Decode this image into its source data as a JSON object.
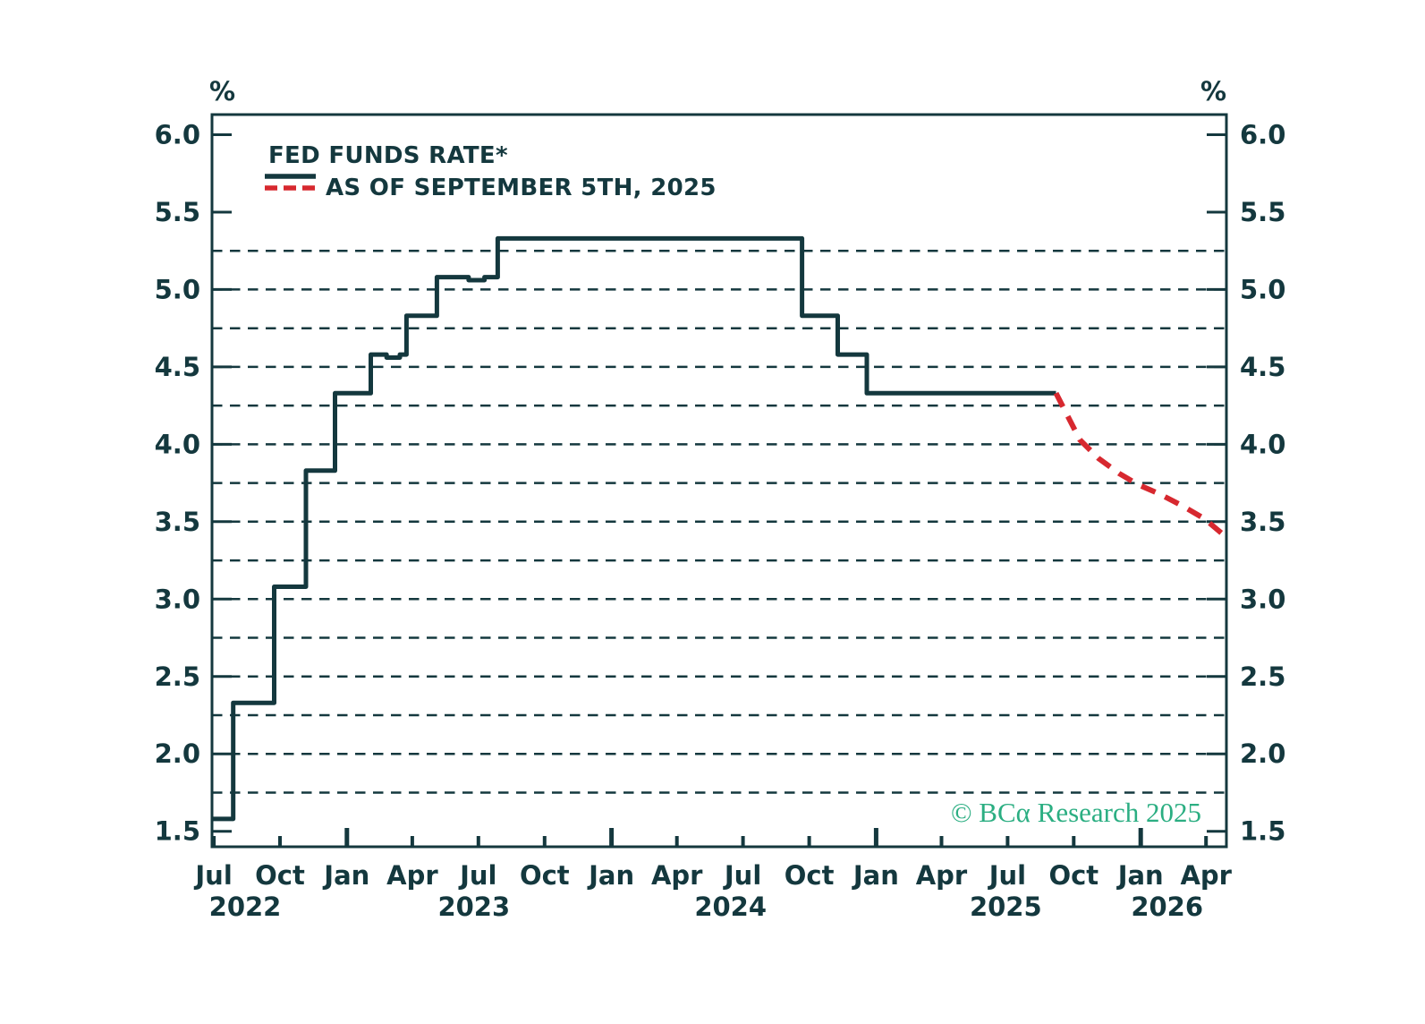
{
  "page": {
    "background": "#FFFFFF"
  },
  "axes": {
    "unit_left": "%",
    "unit_right": "%"
  },
  "legend": {
    "actual_label": "FED FUNDS RATE*",
    "projection_label": "AS OF SEPTEMBER 5TH, 2025"
  },
  "copyright": "© BCα Research 2025",
  "colors": {
    "ink": "#14383E",
    "projection_red": "#D7282F",
    "copyright_green": "#2BAE82",
    "background": "#FFFFFF"
  },
  "chart_data": {
    "type": "line",
    "title": "FED FUNDS RATE*",
    "subtitle": "AS OF SEPTEMBER 5TH, 2025",
    "xlabel": "",
    "ylabel": "%",
    "grid": true,
    "legend_position": "top-left-inside",
    "x_domain": [
      2022.49,
      2026.324
    ],
    "y_domain": [
      1.4,
      6.13
    ],
    "y_ticks": [
      {
        "v": 6.0,
        "label": "6.0"
      },
      {
        "v": 5.5,
        "label": "5.5"
      },
      {
        "v": 5.0,
        "label": "5.0"
      },
      {
        "v": 4.5,
        "label": "4.5"
      },
      {
        "v": 4.0,
        "label": "4.0"
      },
      {
        "v": 3.5,
        "label": "3.5"
      },
      {
        "v": 3.0,
        "label": "3.0"
      },
      {
        "v": 2.5,
        "label": "2.5"
      },
      {
        "v": 2.0,
        "label": "2.0"
      },
      {
        "v": 1.5,
        "label": "1.5"
      }
    ],
    "gridlines": [
      5.25,
      5.0,
      4.75,
      4.5,
      4.25,
      4.0,
      3.75,
      3.5,
      3.25,
      3.0,
      2.75,
      2.5,
      2.25,
      2.0,
      1.75
    ],
    "x_ticks": [
      {
        "t": 2022.497,
        "label": "Jul",
        "major": false
      },
      {
        "t": 2022.747,
        "label": "Oct",
        "major": false
      },
      {
        "t": 2023.0,
        "label": "Jan",
        "major": true
      },
      {
        "t": 2023.247,
        "label": "Apr",
        "major": false
      },
      {
        "t": 2023.497,
        "label": "Jul",
        "major": false
      },
      {
        "t": 2023.747,
        "label": "Oct",
        "major": false
      },
      {
        "t": 2024.0,
        "label": "Jan",
        "major": true
      },
      {
        "t": 2024.247,
        "label": "Apr",
        "major": false
      },
      {
        "t": 2024.497,
        "label": "Jul",
        "major": false
      },
      {
        "t": 2024.747,
        "label": "Oct",
        "major": false
      },
      {
        "t": 2025.0,
        "label": "Jan",
        "major": true
      },
      {
        "t": 2025.247,
        "label": "Apr",
        "major": false
      },
      {
        "t": 2025.497,
        "label": "Jul",
        "major": false
      },
      {
        "t": 2025.747,
        "label": "Oct",
        "major": false
      },
      {
        "t": 2026.0,
        "label": "Jan",
        "major": true
      },
      {
        "t": 2026.247,
        "label": "Apr",
        "major": false
      }
    ],
    "year_labels": [
      {
        "t": 2022.615,
        "label": "2022"
      },
      {
        "t": 2023.48,
        "label": "2023"
      },
      {
        "t": 2024.45,
        "label": "2024"
      },
      {
        "t": 2025.49,
        "label": "2025"
      },
      {
        "t": 2026.1,
        "label": "2026"
      }
    ],
    "series": [
      {
        "name": "FED FUNDS RATE*",
        "style": "solid",
        "step": true,
        "points": [
          [
            2022.49,
            1.58
          ],
          [
            2022.57,
            2.33
          ],
          [
            2022.725,
            3.08
          ],
          [
            2022.845,
            3.83
          ],
          [
            2022.955,
            4.33
          ],
          [
            2023.09,
            4.58
          ],
          [
            2023.15,
            4.56
          ],
          [
            2023.2,
            4.58
          ],
          [
            2023.225,
            4.83
          ],
          [
            2023.34,
            5.08
          ],
          [
            2023.46,
            5.06
          ],
          [
            2023.52,
            5.08
          ],
          [
            2023.57,
            5.33
          ],
          [
            2024.72,
            4.83
          ],
          [
            2024.855,
            4.58
          ],
          [
            2024.965,
            4.33
          ],
          [
            2025.68,
            4.33
          ]
        ]
      },
      {
        "name": "AS OF SEPTEMBER 5TH, 2025",
        "style": "dashed",
        "step": false,
        "points": [
          [
            2025.68,
            4.33
          ],
          [
            2025.77,
            4.03
          ],
          [
            2025.84,
            3.91
          ],
          [
            2025.92,
            3.81
          ],
          [
            2025.99,
            3.74
          ],
          [
            2026.07,
            3.68
          ],
          [
            2026.16,
            3.6
          ],
          [
            2026.24,
            3.52
          ],
          [
            2026.324,
            3.4
          ]
        ]
      }
    ]
  }
}
